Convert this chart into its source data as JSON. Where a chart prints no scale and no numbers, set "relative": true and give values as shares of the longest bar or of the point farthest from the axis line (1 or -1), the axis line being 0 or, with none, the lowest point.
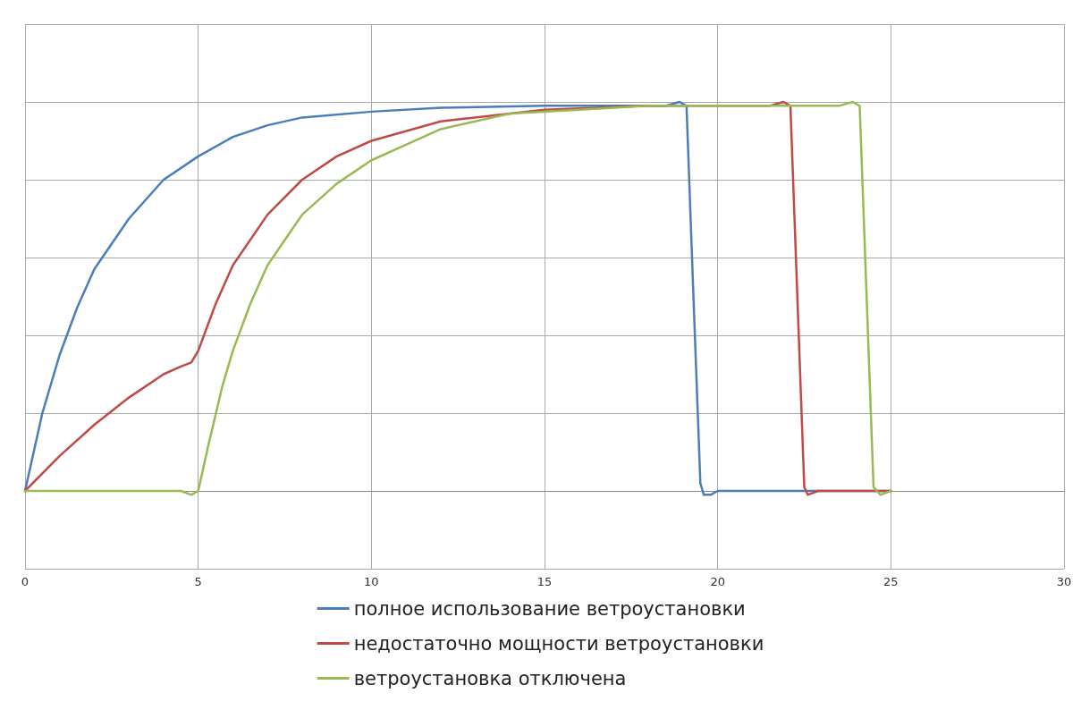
{
  "chart_data": {
    "type": "line",
    "relative": true,
    "xlim": [
      0,
      30
    ],
    "xticks": [
      0,
      5,
      10,
      15,
      20,
      25,
      30
    ],
    "grid": true,
    "legend": "bottom",
    "marker": "none",
    "line_style": "solid",
    "series": [
      {
        "name": "полное использование ветроустановки",
        "color": "#4a7ebb",
        "x": [
          0,
          0.5,
          1,
          1.5,
          2,
          3,
          4,
          5,
          6,
          7,
          8,
          10,
          12,
          15,
          18.5,
          18.9,
          19.1,
          19.3,
          19.5,
          19.6,
          19.8,
          20,
          25
        ],
        "values": [
          0,
          0.2,
          0.35,
          0.47,
          0.57,
          0.7,
          0.8,
          0.86,
          0.91,
          0.94,
          0.96,
          0.975,
          0.985,
          0.99,
          0.99,
          1,
          0.99,
          0.5,
          0.02,
          -0.01,
          -0.01,
          0,
          0
        ]
      },
      {
        "name": "недостаточно мощности ветроустановки",
        "color": "#be4b48",
        "x": [
          0,
          1,
          2,
          3,
          4,
          4.5,
          4.8,
          5,
          5.5,
          6,
          7,
          8,
          9,
          10,
          12,
          15,
          18,
          21.5,
          21.9,
          22.1,
          22.3,
          22.5,
          22.6,
          22.9,
          25
        ],
        "values": [
          0,
          0.09,
          0.17,
          0.24,
          0.3,
          0.32,
          0.33,
          0.36,
          0.48,
          0.58,
          0.71,
          0.8,
          0.86,
          0.9,
          0.95,
          0.98,
          0.99,
          0.99,
          1,
          0.99,
          0.5,
          0.01,
          -0.01,
          0,
          0
        ]
      },
      {
        "name": "ветроустановка отключена",
        "color": "#98b954",
        "x": [
          0,
          4.5,
          4.8,
          5,
          5.3,
          5.7,
          6,
          6.5,
          7,
          8,
          9,
          10,
          11,
          12,
          14,
          16,
          18,
          23.5,
          23.9,
          24.1,
          24.3,
          24.5,
          24.7,
          25
        ],
        "values": [
          0,
          0,
          -0.01,
          0,
          0.12,
          0.27,
          0.36,
          0.48,
          0.58,
          0.71,
          0.79,
          0.85,
          0.89,
          0.93,
          0.97,
          0.98,
          0.99,
          0.99,
          1,
          0.99,
          0.5,
          0.01,
          -0.01,
          0
        ]
      }
    ]
  }
}
